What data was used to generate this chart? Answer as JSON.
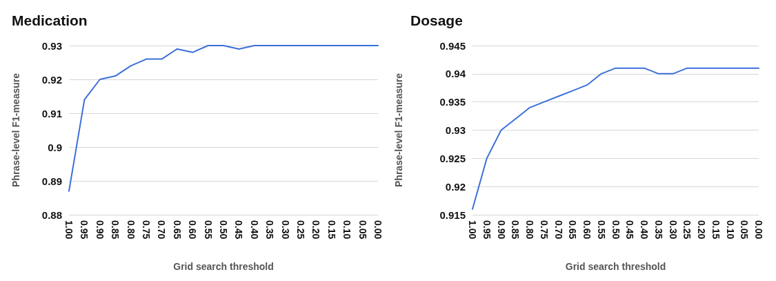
{
  "chart_data": [
    {
      "type": "line",
      "title": "Medication",
      "xlabel": "Grid search threshold",
      "ylabel": "Phrase-level F1-measure",
      "categories": [
        "1.00",
        "0.95",
        "0.90",
        "0.85",
        "0.80",
        "0.75",
        "0.70",
        "0.65",
        "0.60",
        "0.55",
        "0.50",
        "0.45",
        "0.40",
        "0.35",
        "0.30",
        "0.25",
        "0.20",
        "0.15",
        "0.10",
        "0.05",
        "0.00"
      ],
      "series": [
        {
          "color": "#3b6fd8",
          "values": [
            0.887,
            0.914,
            0.92,
            0.921,
            0.924,
            0.926,
            0.926,
            0.929,
            0.928,
            0.93,
            0.93,
            0.929,
            0.93,
            0.93,
            0.93,
            0.93,
            0.93,
            0.93,
            0.93,
            0.93,
            0.93
          ]
        }
      ],
      "ylim": [
        0.88,
        0.93
      ],
      "yticks": [
        0.88,
        0.89,
        0.9,
        0.91,
        0.92,
        0.93
      ],
      "grid": "y",
      "marker": "none",
      "line_style": "solid"
    },
    {
      "type": "line",
      "title": "Dosage",
      "xlabel": "Grid search threshold",
      "ylabel": "Phrase-level F1-measure",
      "categories": [
        "1.00",
        "0.95",
        "0.90",
        "0.85",
        "0.80",
        "0.75",
        "0.70",
        "0.65",
        "0.60",
        "0.55",
        "0.50",
        "0.45",
        "0.40",
        "0.35",
        "0.30",
        "0.25",
        "0.20",
        "0.15",
        "0.10",
        "0.05",
        "0.00"
      ],
      "series": [
        {
          "color": "#3b6fd8",
          "values": [
            0.916,
            0.925,
            0.93,
            0.932,
            0.934,
            0.935,
            0.936,
            0.937,
            0.938,
            0.94,
            0.941,
            0.941,
            0.941,
            0.94,
            0.94,
            0.941,
            0.941,
            0.941,
            0.941,
            0.941,
            0.941
          ]
        }
      ],
      "ylim": [
        0.915,
        0.945
      ],
      "yticks": [
        0.915,
        0.92,
        0.925,
        0.93,
        0.935,
        0.94,
        0.945
      ],
      "grid": "y",
      "marker": "none",
      "line_style": "solid"
    }
  ]
}
